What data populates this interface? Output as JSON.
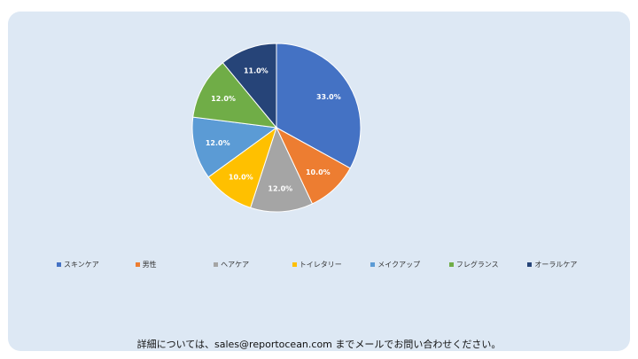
{
  "chart_data": {
    "type": "pie",
    "categories": [
      "スキンケア",
      "男性",
      "ヘアケア",
      "トイレタリー",
      "メイクアップ",
      "フレグランス",
      "オーラルケア"
    ],
    "values": [
      33.0,
      10.0,
      12.0,
      10.0,
      12.0,
      12.0,
      11.0
    ],
    "labels": [
      "33.0%",
      "10.0%",
      "12.0%",
      "10.0%",
      "12.0%",
      "12.0%",
      "11.0%"
    ],
    "colors": [
      "#4472c4",
      "#ed7d31",
      "#a5a5a5",
      "#ffc000",
      "#5b9bd5",
      "#70ad47",
      "#264478"
    ],
    "legend_position": "bottom"
  },
  "footer": {
    "text": "詳細については、sales@reportocean.com までメールでお問い合わせください。"
  }
}
